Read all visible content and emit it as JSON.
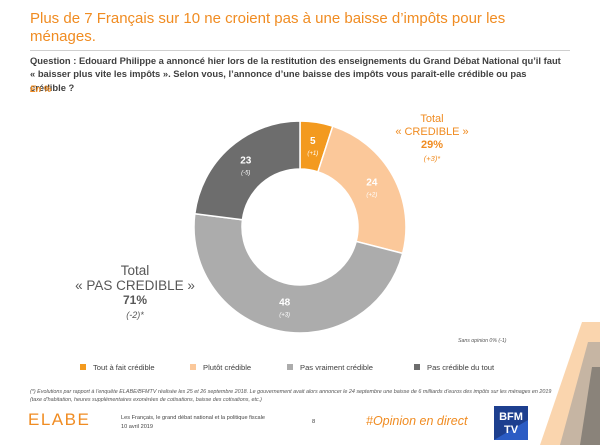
{
  "header": {
    "title": "Plus de 7 Français sur 10 ne croient pas à une baisse d’impôts pour les ménages."
  },
  "question": {
    "text": "Question : Edouard Philippe a annoncé hier lors de la restitution des enseignements du Grand Débat National qu’il faut « baisser plus vite les impôts ». Selon vous, l’annonce d’une baisse des impôts vous paraît-elle crédible ou pas crédible ?",
    "unit": "En %"
  },
  "chart_data": {
    "type": "pie",
    "subtype": "donut",
    "title": "",
    "start": "top, clockwise",
    "slices": [
      {
        "label": "Tout à fait crédible",
        "value": 5,
        "delta": "(+1)",
        "color": "#f39a1f",
        "label_color": "#ffffff"
      },
      {
        "label": "Plutôt crédible",
        "value": 24,
        "delta": "(+2)",
        "color": "#fbc89a",
        "label_color": "#ffffff"
      },
      {
        "label": "Pas vraiment crédible",
        "value": 48,
        "delta": "(+3)",
        "color": "#acacac",
        "label_color": "#ffffff"
      },
      {
        "label": "Pas crédible du tout",
        "value": 23,
        "delta": "(-5)",
        "color": "#6d6d6d",
        "label_color": "#ffffff"
      }
    ],
    "groups": {
      "credible": {
        "line1": "Total",
        "line2": "« CREDIBLE »",
        "value": "29%",
        "delta": "(+3)*"
      },
      "pas_credible": {
        "line1": "Total",
        "line2": "« PAS CREDIBLE »",
        "value": "71%",
        "delta": "(-2)*"
      }
    },
    "note": "Sans opinion 0% (-1)"
  },
  "legend": [
    {
      "label": "Tout à fait crédible",
      "color": "#f39a1f"
    },
    {
      "label": "Plutôt crédible",
      "color": "#fbc89a"
    },
    {
      "label": "Pas vraiment crédible",
      "color": "#acacac"
    },
    {
      "label": "Pas crédible du tout",
      "color": "#6d6d6d"
    }
  ],
  "footer": {
    "footnote": "(*) Evolutions par rapport à l’enquête ELABE/BFMTV réalisée les 25 et 26 septembre 2018. Le gouvernement avait alors annoncer le 24 septembre une baisse de 6 milliards d’euros des impôts sur les ménages en 2019 (taxe d’habitation, heures supplémentaires exonérées de cotisations, baisse des cotisations, etc.)",
    "brand": "ELABE",
    "study_line1": "Les Français, le grand débat national et la politique fiscale",
    "study_line2": "10 avril 2019",
    "page_number": "8",
    "hashtag": "#Opinion en direct",
    "partner_line1": "BFM",
    "partner_line2": "TV"
  }
}
